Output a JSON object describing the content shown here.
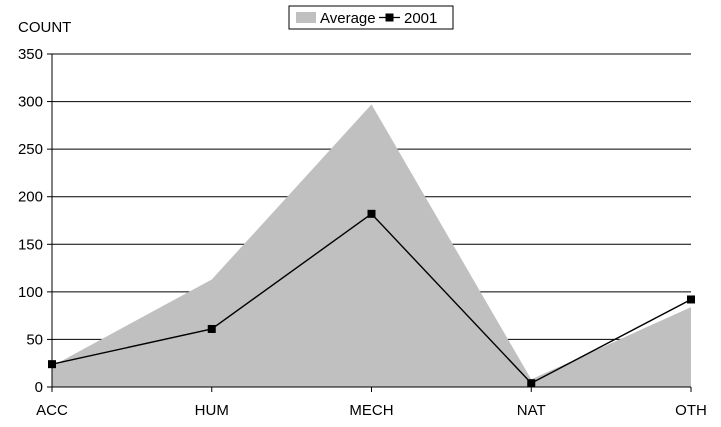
{
  "chart_data": {
    "type": "area",
    "ylabel": "COUNT",
    "categories": [
      "ACC",
      "HUM",
      "MECH",
      "NAT",
      "OTH"
    ],
    "ylim": [
      0,
      350
    ],
    "yticks": [
      0,
      50,
      100,
      150,
      200,
      250,
      300,
      350
    ],
    "grid": true,
    "legend_position": "top-center",
    "series": [
      {
        "name": "Average",
        "type": "area",
        "color": "#c0c0c0",
        "values": [
          22,
          113,
          297,
          8,
          84
        ]
      },
      {
        "name": "2001",
        "type": "line",
        "marker": "square",
        "color": "#000000",
        "values": [
          24,
          61,
          182,
          4,
          92
        ]
      }
    ]
  }
}
